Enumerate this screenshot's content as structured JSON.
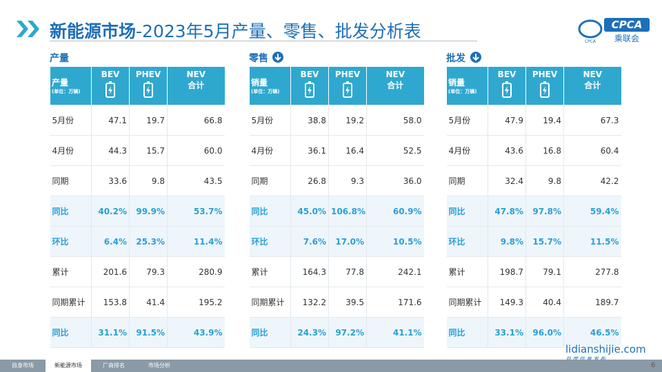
{
  "header": {
    "title_bold": "新能源市场",
    "title_rest": "-2023年5月产量、零售、批发分析表",
    "logo_text": "CPCA",
    "logo_cn": "乘联会",
    "logo_small": "CPCA"
  },
  "tables": [
    {
      "section": "产量",
      "corner": "产量",
      "unit": "(单位：万辆)",
      "columns": [
        [
          "BEV"
        ],
        [
          "PHEV"
        ],
        [
          "NEV",
          "合计"
        ]
      ],
      "rows": [
        [
          "5月份",
          "47.1",
          "19.7",
          "66.8"
        ],
        [
          "4月份",
          "44.3",
          "15.7",
          "60.0"
        ],
        [
          "同期",
          "33.6",
          "9.8",
          "43.5"
        ],
        [
          "同比",
          "40.2%",
          "99.9%",
          "53.7%"
        ],
        [
          "环比",
          "6.4%",
          "25.3%",
          "11.4%"
        ],
        [
          "累计",
          "201.6",
          "79.3",
          "280.9"
        ],
        [
          "同期累计",
          "153.8",
          "41.4",
          "195.2"
        ],
        [
          "同比",
          "31.1%",
          "91.5%",
          "43.9%"
        ]
      ]
    },
    {
      "section": "零售",
      "corner": "销量",
      "unit": "(单位：万辆)",
      "columns": [
        [
          "BEV"
        ],
        [
          "PHEV"
        ],
        [
          "NEV",
          "合计"
        ]
      ],
      "rows": [
        [
          "5月份",
          "38.8",
          "19.2",
          "58.0"
        ],
        [
          "4月份",
          "36.1",
          "16.4",
          "52.5"
        ],
        [
          "同期",
          "26.8",
          "9.3",
          "36.0"
        ],
        [
          "同比",
          "45.0%",
          "106.8%",
          "60.9%"
        ],
        [
          "环比",
          "7.6%",
          "17.0%",
          "10.5%"
        ],
        [
          "累计",
          "164.3",
          "77.8",
          "242.1"
        ],
        [
          "同期累计",
          "132.2",
          "39.5",
          "171.6"
        ],
        [
          "同比",
          "24.3%",
          "97.2%",
          "41.1%"
        ]
      ]
    },
    {
      "section": "批发",
      "corner": "销量",
      "unit": "(单位：万辆)",
      "columns": [
        [
          "BEV"
        ],
        [
          "PHEV"
        ],
        [
          "NEV",
          "合计"
        ]
      ],
      "rows": [
        [
          "5月份",
          "47.9",
          "19.4",
          "67.3"
        ],
        [
          "4月份",
          "43.6",
          "16.8",
          "60.4"
        ],
        [
          "同期",
          "32.4",
          "9.8",
          "42.2"
        ],
        [
          "同比",
          "47.8%",
          "97.8%",
          "59.4%"
        ],
        [
          "环比",
          "9.8%",
          "15.7%",
          "11.5%"
        ],
        [
          "累计",
          "198.7",
          "79.1",
          "277.8"
        ],
        [
          "同期累计",
          "149.3",
          "40.4",
          "189.7"
        ],
        [
          "同比",
          "33.1%",
          "96.0%",
          "46.5%"
        ]
      ]
    }
  ],
  "footer": {
    "tabs": [
      "自身市场",
      "新能源市场",
      "厂商排名",
      "市场分析"
    ],
    "site": "lidianshijie.com",
    "site_sub": "月度信息发布",
    "page": "6"
  }
}
